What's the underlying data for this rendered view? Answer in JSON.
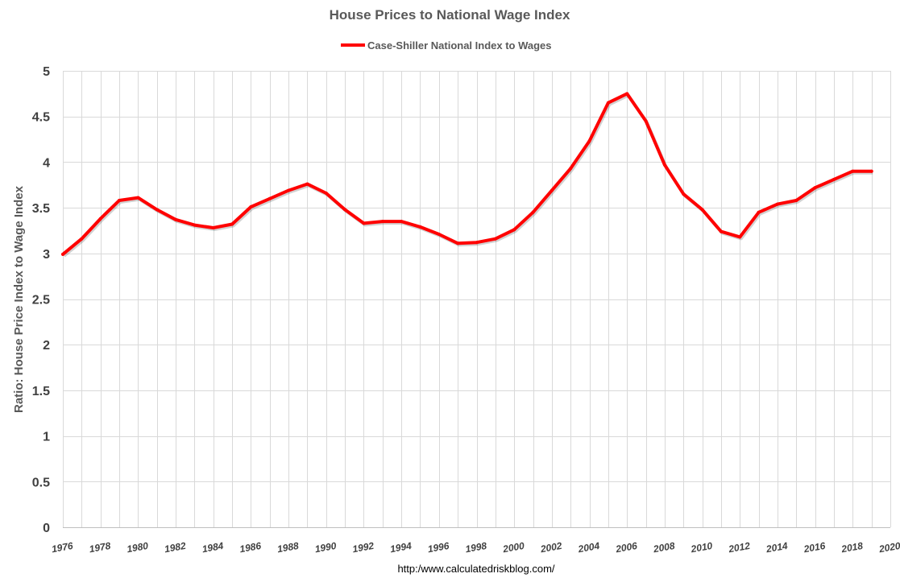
{
  "chart_data": {
    "type": "line",
    "title": "House Prices to National Wage Index",
    "ylabel": "Ratio: House Price Index to Wage Index",
    "xlabel": "",
    "source": "http:/www.calculatedriskblog.com/",
    "ylim": [
      0,
      5
    ],
    "yticks": [
      0,
      0.5,
      1,
      1.5,
      2,
      2.5,
      3,
      3.5,
      4,
      4.5,
      5
    ],
    "yticklabels": [
      "0",
      "0.5",
      "1",
      "1.5",
      "2",
      "2.5",
      "3",
      "3.5",
      "4",
      "4.5",
      "5"
    ],
    "xlim": [
      1976,
      2020
    ],
    "xticks": [
      1976,
      1978,
      1980,
      1982,
      1984,
      1986,
      1988,
      1990,
      1992,
      1994,
      1996,
      1998,
      2000,
      2002,
      2004,
      2006,
      2008,
      2010,
      2012,
      2014,
      2016,
      2018,
      2020
    ],
    "xticklabels": [
      "1976",
      "1978",
      "1980",
      "1982",
      "1984",
      "1986",
      "1988",
      "1990",
      "1992",
      "1994",
      "1996",
      "1998",
      "2000",
      "2002",
      "2004",
      "2006",
      "2008",
      "2010",
      "2012",
      "2014",
      "2016",
      "2018",
      "2020"
    ],
    "grid": "vertical and horizontal",
    "legend_position": "top-center",
    "series": [
      {
        "name": "Case-Shiller National Index to Wages",
        "color": "#ff0000",
        "x": [
          1976,
          1977,
          1978,
          1979,
          1980,
          1981,
          1982,
          1983,
          1984,
          1985,
          1986,
          1987,
          1988,
          1989,
          1990,
          1991,
          1992,
          1993,
          1994,
          1995,
          1996,
          1997,
          1998,
          1999,
          2000,
          2001,
          2002,
          2003,
          2004,
          2005,
          2006,
          2007,
          2008,
          2009,
          2010,
          2011,
          2012,
          2013,
          2014,
          2015,
          2016,
          2017,
          2018,
          2019
        ],
        "values": [
          2.99,
          3.16,
          3.38,
          3.58,
          3.61,
          3.48,
          3.37,
          3.31,
          3.28,
          3.32,
          3.51,
          3.6,
          3.69,
          3.76,
          3.66,
          3.48,
          3.33,
          3.35,
          3.35,
          3.29,
          3.21,
          3.11,
          3.12,
          3.16,
          3.26,
          3.45,
          3.69,
          3.93,
          4.23,
          4.65,
          4.75,
          4.45,
          3.97,
          3.65,
          3.48,
          3.24,
          3.18,
          3.45,
          3.54,
          3.58,
          3.72,
          3.81,
          3.9,
          3.9
        ]
      }
    ]
  },
  "colors": {
    "line": "#ff0000",
    "grid": "#d9d9d9"
  }
}
